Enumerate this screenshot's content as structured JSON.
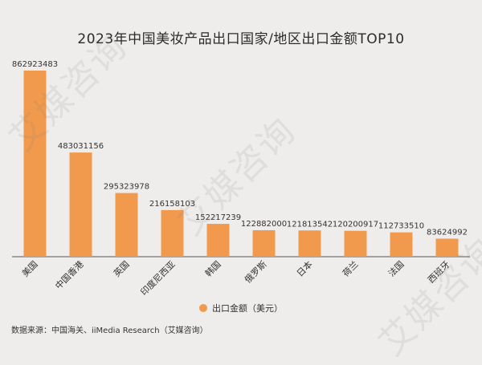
{
  "chart_data": {
    "type": "bar",
    "title": "2023年中国美妆产品出口国家/地区出口金额TOP10",
    "categories": [
      "美国",
      "中国香港",
      "英国",
      "印度尼西亚",
      "韩国",
      "俄罗斯",
      "日本",
      "荷兰",
      "法国",
      "西班牙"
    ],
    "series": [
      {
        "name": "出口金额（美元）",
        "values": [
          862923483,
          483031156,
          295323978,
          216158103,
          152217239,
          122882000,
          121813542,
          120200917,
          112733510,
          83624992
        ]
      }
    ],
    "value_labels": [
      "862923483",
      "483031156",
      "295323978",
      "216158103",
      "152217239",
      "122882000",
      "121813542",
      "120200917",
      "112733510",
      "83624992"
    ],
    "ylim": [
      0,
      862923483
    ],
    "xlabel": "",
    "ylabel": "",
    "grid": false,
    "legend_position": "bottom-center",
    "bar_color": "#f19a4d"
  },
  "legend": {
    "label": "出口金额（美元）"
  },
  "source": "数据来源：中国海关、iiMedia Research（艾媒咨询）",
  "watermark": "艾媒咨询"
}
